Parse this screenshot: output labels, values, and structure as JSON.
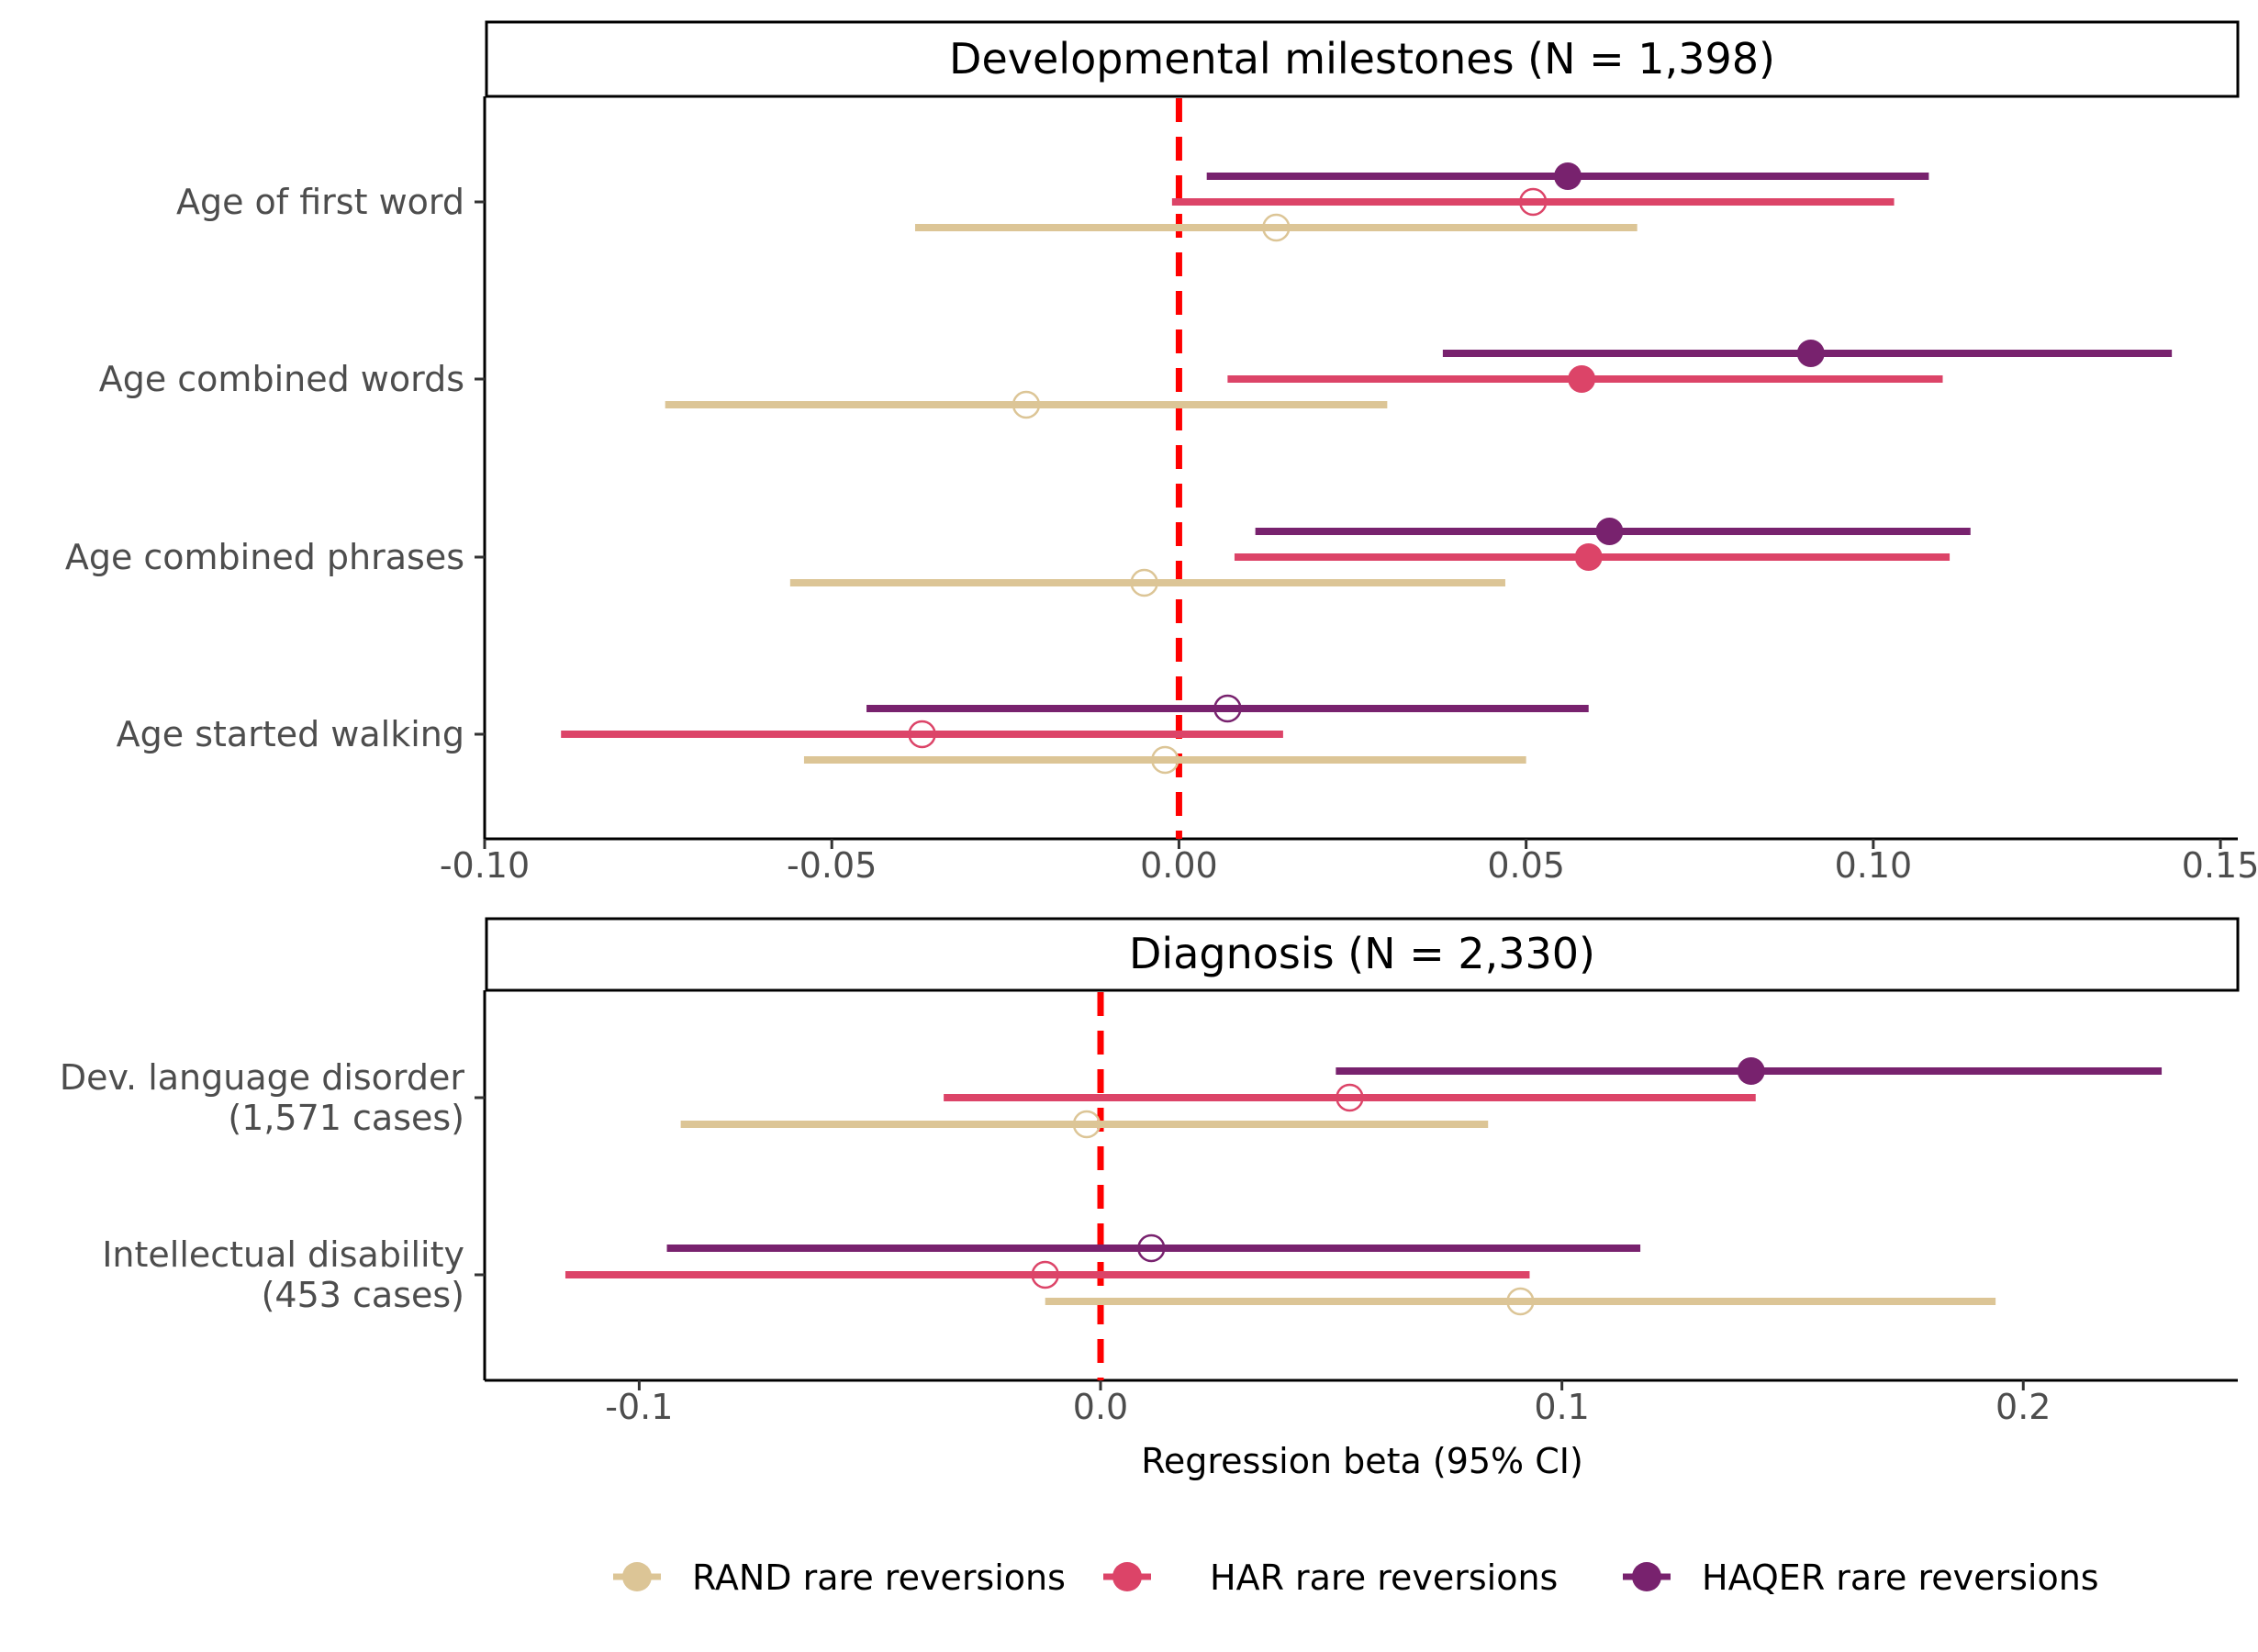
{
  "chart_data": [
    {
      "type": "forest",
      "title": "Developmental milestones (N = 1,398)",
      "xlabel": "",
      "xlim": [
        -0.1,
        0.1525
      ],
      "xticks": [
        -0.1,
        -0.05,
        0.0,
        0.05,
        0.1,
        0.15
      ],
      "xtick_labels": [
        "-0.10",
        "-0.05",
        "0.00",
        "0.05",
        "0.10",
        "0.15"
      ],
      "reference_line": 0,
      "categories": [
        "Age of first word",
        "Age combined words",
        "Age combined phrases",
        "Age started walking"
      ],
      "series": [
        {
          "name": "HAQER rare reversions",
          "color": "#78226e",
          "estimate": [
            0.056,
            0.091,
            0.062,
            0.007
          ],
          "lower": [
            0.004,
            0.038,
            0.011,
            -0.045
          ],
          "upper": [
            0.108,
            0.143,
            0.114,
            0.059
          ],
          "significant": [
            true,
            true,
            true,
            false
          ]
        },
        {
          "name": "HAR rare reversions",
          "color": "#dc4468",
          "estimate": [
            0.051,
            0.058,
            0.059,
            -0.037
          ],
          "lower": [
            -0.001,
            0.007,
            0.008,
            -0.089
          ],
          "upper": [
            0.103,
            0.11,
            0.111,
            0.015
          ],
          "significant": [
            false,
            true,
            true,
            false
          ]
        },
        {
          "name": "RAND rare reversions",
          "color": "#dcc596",
          "estimate": [
            0.014,
            -0.022,
            -0.005,
            -0.002
          ],
          "lower": [
            -0.038,
            -0.074,
            -0.056,
            -0.054
          ],
          "upper": [
            0.066,
            0.03,
            0.047,
            0.05
          ],
          "significant": [
            false,
            false,
            false,
            false
          ]
        }
      ]
    },
    {
      "type": "forest",
      "title": "Diagnosis (N = 2,330)",
      "xlabel": "Regression beta (95% CI)",
      "xlim": [
        -0.1335,
        0.2465
      ],
      "xticks": [
        -0.1,
        0.0,
        0.1,
        0.2
      ],
      "xtick_labels": [
        "-0.1",
        "0.0",
        "0.1",
        "0.2"
      ],
      "reference_line": 0,
      "categories": [
        [
          "Dev. language disorder",
          "(1,571 cases)"
        ],
        [
          "Intellectual disability",
          "(453 cases)"
        ]
      ],
      "series": [
        {
          "name": "HAQER rare reversions",
          "color": "#78226e",
          "estimate": [
            0.141,
            0.011
          ],
          "lower": [
            0.051,
            -0.094
          ],
          "upper": [
            0.23,
            0.117
          ],
          "significant": [
            true,
            false
          ]
        },
        {
          "name": "HAR rare reversions",
          "color": "#dc4468",
          "estimate": [
            0.054,
            -0.012
          ],
          "lower": [
            -0.034,
            -0.116
          ],
          "upper": [
            0.142,
            0.093
          ],
          "significant": [
            false,
            false
          ]
        },
        {
          "name": "RAND rare reversions",
          "color": "#dcc596",
          "estimate": [
            -0.003,
            0.091
          ],
          "lower": [
            -0.091,
            -0.012
          ],
          "upper": [
            0.084,
            0.194
          ],
          "significant": [
            false,
            false
          ]
        }
      ]
    }
  ],
  "legend": {
    "placement": "bottom",
    "items": [
      {
        "label": "RAND rare reversions",
        "color": "#dcc596"
      },
      {
        "label": "HAR rare reversions",
        "color": "#dc4468"
      },
      {
        "label": "HAQER rare reversions",
        "color": "#78226e"
      }
    ]
  },
  "reference_line_color": "#ff0000"
}
